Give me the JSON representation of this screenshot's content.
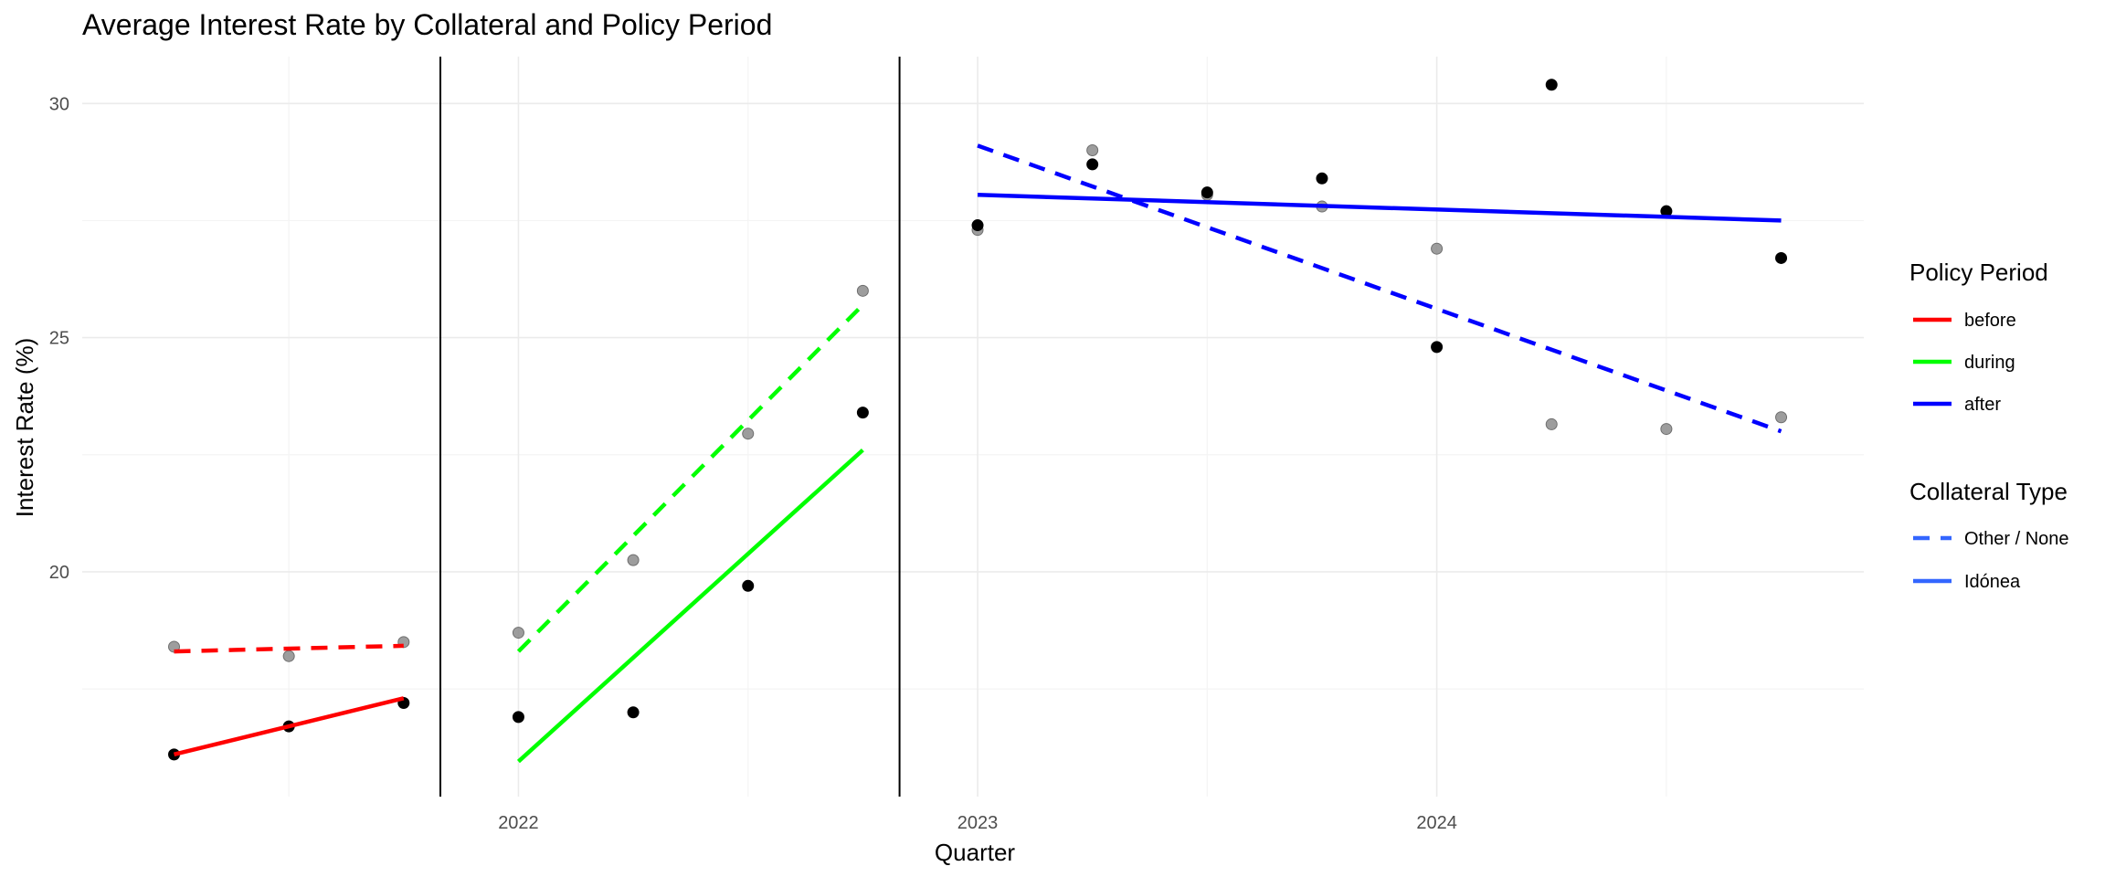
{
  "chart_data": {
    "type": "scatter",
    "title": "Average Interest Rate by Collateral and Policy Period",
    "xlabel": "Quarter",
    "ylabel": "Interest Rate (%)",
    "x_ticks": [
      {
        "value": 2022.0,
        "label": "2022"
      },
      {
        "value": 2023.0,
        "label": "2023"
      },
      {
        "value": 2024.0,
        "label": "2024"
      }
    ],
    "y_ticks": [
      {
        "value": 20,
        "label": "20"
      },
      {
        "value": 25,
        "label": "25"
      },
      {
        "value": 30,
        "label": "30"
      }
    ],
    "xlim": [
      2021.05,
      2024.93
    ],
    "ylim": [
      15.2,
      31.0
    ],
    "grid": true,
    "legend_position": "right",
    "policy_boundaries": [
      2021.83,
      2022.83
    ],
    "policy_period_legend": {
      "title": "Policy Period",
      "items": [
        {
          "label": "before",
          "color": "#ff0000"
        },
        {
          "label": "during",
          "color": "#00ff00"
        },
        {
          "label": "after",
          "color": "#0000ff"
        }
      ]
    },
    "collateral_legend": {
      "title": "Collateral Type",
      "legend_color": "#3366ff",
      "items": [
        {
          "label": "Other / None",
          "linetype": "dashed"
        },
        {
          "label": "Idónea",
          "linetype": "solid"
        }
      ]
    },
    "points": {
      "Idónea": {
        "color": "#000000",
        "values": [
          [
            2021.25,
            16.1
          ],
          [
            2021.5,
            16.7
          ],
          [
            2021.75,
            17.2
          ],
          [
            2022.0,
            16.9
          ],
          [
            2022.25,
            17.0
          ],
          [
            2022.5,
            19.7
          ],
          [
            2022.75,
            23.4
          ],
          [
            2023.0,
            27.4
          ],
          [
            2023.25,
            28.7
          ],
          [
            2023.5,
            28.1
          ],
          [
            2023.75,
            28.4
          ],
          [
            2024.0,
            24.8
          ],
          [
            2024.25,
            30.4
          ],
          [
            2024.5,
            27.7
          ],
          [
            2024.75,
            26.7
          ]
        ]
      },
      "Other / None": {
        "color": "#8c8c8c",
        "values": [
          [
            2021.25,
            18.4
          ],
          [
            2021.5,
            18.2
          ],
          [
            2021.75,
            18.5
          ],
          [
            2022.0,
            18.7
          ],
          [
            2022.25,
            20.25
          ],
          [
            2022.5,
            22.95
          ],
          [
            2022.75,
            26.0
          ],
          [
            2023.0,
            27.3
          ],
          [
            2023.25,
            29.0
          ],
          [
            2023.5,
            28.05
          ],
          [
            2023.75,
            27.8
          ],
          [
            2024.0,
            26.9
          ],
          [
            2024.25,
            23.15
          ],
          [
            2024.5,
            23.05
          ],
          [
            2024.75,
            23.3
          ]
        ]
      }
    },
    "trend_lines": [
      {
        "period": "before",
        "collateral": "Idónea",
        "color": "#ff0000",
        "linetype": "solid",
        "x": [
          2021.25,
          2021.75
        ],
        "y": [
          16.1,
          17.3
        ]
      },
      {
        "period": "before",
        "collateral": "Other / None",
        "color": "#ff0000",
        "linetype": "dashed",
        "x": [
          2021.25,
          2021.75
        ],
        "y": [
          18.3,
          18.42
        ]
      },
      {
        "period": "during",
        "collateral": "Idónea",
        "color": "#00ff00",
        "linetype": "solid",
        "x": [
          2022.0,
          2022.75
        ],
        "y": [
          15.95,
          22.6
        ]
      },
      {
        "period": "during",
        "collateral": "Other / None",
        "color": "#00ff00",
        "linetype": "dashed",
        "x": [
          2022.0,
          2022.75
        ],
        "y": [
          18.3,
          25.7
        ]
      },
      {
        "period": "after",
        "collateral": "Idónea",
        "color": "#0000ff",
        "linetype": "solid",
        "x": [
          2023.0,
          2024.75
        ],
        "y": [
          28.05,
          27.5
        ]
      },
      {
        "period": "after",
        "collateral": "Other / None",
        "color": "#0000ff",
        "linetype": "dashed",
        "x": [
          2023.0,
          2024.75
        ],
        "y": [
          29.1,
          23.0
        ]
      }
    ]
  }
}
